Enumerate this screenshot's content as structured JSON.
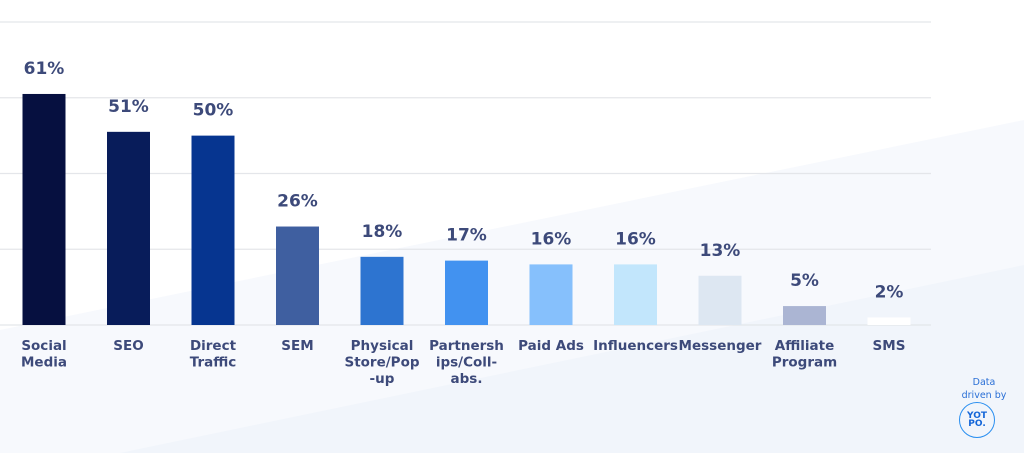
{
  "chart_data": {
    "type": "bar",
    "categories": [
      "Social Media",
      "SEO",
      "Direct Traffic",
      "SEM",
      "Physical Store/Pop-up",
      "Partnerships/Coll-abs.",
      "Paid Ads",
      "Influencers",
      "Messenger",
      "Affiliate Program",
      "SMS"
    ],
    "category_lines": [
      [
        "Social",
        "Media"
      ],
      [
        "SEO"
      ],
      [
        "Direct",
        "Traffic"
      ],
      [
        "SEM"
      ],
      [
        "Physical",
        "Store/Pop",
        "-up"
      ],
      [
        "Partnersh",
        "ips/Coll-",
        "abs."
      ],
      [
        "Paid Ads"
      ],
      [
        "Influencers"
      ],
      [
        "Messenger"
      ],
      [
        "Affiliate",
        "Program"
      ],
      [
        "SMS"
      ]
    ],
    "values": [
      61,
      51,
      50,
      26,
      18,
      17,
      16,
      16,
      13,
      5,
      2
    ],
    "data_labels": [
      "61%",
      "51%",
      "50%",
      "26%",
      "18%",
      "17%",
      "16%",
      "16%",
      "13%",
      "5%",
      "2%"
    ],
    "colors": [
      "#061040",
      "#081c5a",
      "#063590",
      "#3f5fa0",
      "#2d74d0",
      "#4292f0",
      "#86c0fc",
      "#c2e6fc",
      "#dde7f2",
      "#abb5d3",
      "#ffffff"
    ],
    "ylim": [
      0,
      80
    ],
    "grid": true,
    "label_color": "#3d4a7a"
  },
  "credit": {
    "line1": "Data",
    "line2": "driven by",
    "logo_text_top": "YOT",
    "logo_text_bottom": "PO."
  }
}
